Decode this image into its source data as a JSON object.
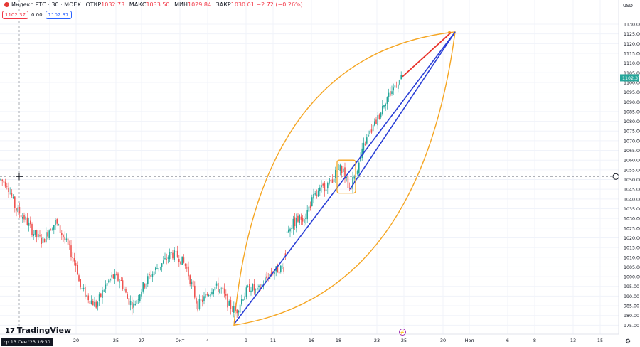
{
  "header": {
    "symbol": "Индекс РТС · 30 · MOEX",
    "open_label": "ОТКР",
    "open": "1032.73",
    "high_label": "МАКС",
    "high": "1033.50",
    "low_label": "МИН",
    "low": "1029.84",
    "close_label": "ЗАКР",
    "close": "1030.01",
    "change": "−2.72 (−0.26%)"
  },
  "badges": {
    "bid": "1102.37",
    "spread": "0.00",
    "ask": "1102.37"
  },
  "currency": "USD",
  "branding": "TradingView",
  "crosshair_time": "ср 13 Сен '23   16:30",
  "crosshair_price": "1051.54",
  "last_price": "1102.37",
  "colors": {
    "up": "#26a69a",
    "down": "#ef5350",
    "ellipse": "#f5a623",
    "trend": "#2a3fd6",
    "projection": "#e8332b",
    "box": "#f5a623"
  },
  "chart_data": {
    "type": "candlestick",
    "title": "Индекс РТС · 30 · MOEX",
    "ylim": [
      970,
      1135
    ],
    "y_ticks": [
      975,
      980,
      985,
      990,
      995,
      1000,
      1005,
      1010,
      1015,
      1020,
      1025,
      1030,
      1035,
      1040,
      1045,
      1050,
      1055,
      1060,
      1065,
      1070,
      1075,
      1080,
      1085,
      1090,
      1095,
      1100,
      1105,
      1110,
      1115,
      1120,
      1125,
      1130
    ],
    "x_ticks": [
      "13",
      "18",
      "20",
      "25",
      "27",
      "Окт",
      "4",
      "9",
      "11",
      "16",
      "18",
      "23",
      "25",
      "30",
      "Ноя",
      "6",
      "8",
      "13",
      "15"
    ],
    "grid": true,
    "series": [
      {
        "name": "path",
        "points": [
          [
            "13",
            1050
          ],
          [
            "13",
            1048
          ],
          [
            "13",
            1035
          ],
          [
            "18",
            1030
          ],
          [
            "18",
            1022
          ],
          [
            "18",
            1018
          ],
          [
            "18",
            1025
          ],
          [
            "18",
            1028
          ],
          [
            "20",
            1020
          ],
          [
            "20",
            1012
          ],
          [
            "20",
            1005
          ],
          [
            "20",
            995
          ],
          [
            "20",
            990
          ],
          [
            "25",
            985
          ],
          [
            "25",
            995
          ],
          [
            "25",
            1000
          ],
          [
            "25",
            998
          ],
          [
            "27",
            988
          ],
          [
            "27",
            985
          ],
          [
            "27",
            993
          ],
          [
            "27",
            1000
          ],
          [
            "27",
            1005
          ],
          [
            "Окт",
            1008
          ],
          [
            "Окт",
            1012
          ],
          [
            "Окт",
            1010
          ],
          [
            "Окт",
            1005
          ],
          [
            "4",
            995
          ],
          [
            "4",
            985
          ],
          [
            "4",
            990
          ],
          [
            "4",
            995
          ],
          [
            "4",
            993
          ],
          [
            "9",
            985
          ],
          [
            "9",
            982
          ],
          [
            "9",
            990
          ],
          [
            "9",
            995
          ],
          [
            "9",
            992
          ],
          [
            "11",
            998
          ],
          [
            "11",
            1002
          ],
          [
            "11",
            1004
          ],
          [
            "11",
            1005
          ],
          [
            "16",
            1025
          ],
          [
            "16",
            1028
          ],
          [
            "16",
            1032
          ],
          [
            "16",
            1040
          ],
          [
            "16",
            1045
          ],
          [
            "18",
            1048
          ],
          [
            "18",
            1052
          ],
          [
            "18",
            1055
          ],
          [
            "18",
            1056
          ],
          [
            "18",
            1050
          ],
          [
            "18",
            1045
          ],
          [
            "18",
            1052
          ],
          [
            "18",
            1058
          ],
          [
            "23",
            1068
          ],
          [
            "23",
            1075
          ],
          [
            "23",
            1082
          ],
          [
            "23",
            1090
          ],
          [
            "23",
            1095
          ],
          [
            "25",
            1100
          ],
          [
            "25",
            1102
          ]
        ]
      },
      {
        "name": "trend-line",
        "points": [
          [
            "9",
            976
          ],
          [
            "30",
            1126
          ]
        ]
      },
      {
        "name": "trend-line-2",
        "points": [
          [
            "18",
            1045
          ],
          [
            "30",
            1126
          ]
        ]
      },
      {
        "name": "projection",
        "points": [
          [
            "25",
            1102
          ],
          [
            "30",
            1126
          ]
        ]
      }
    ],
    "annotations": [
      "leaf-shaped ellipse from 975 to 1126",
      "consolidation box around 1045-1058"
    ]
  }
}
